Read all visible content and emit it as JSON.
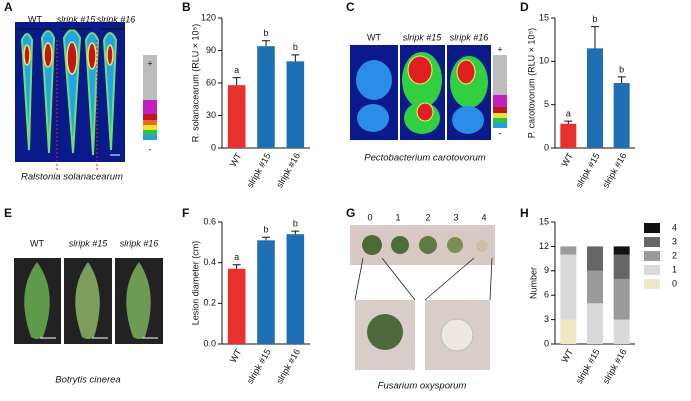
{
  "panel_labels": [
    "A",
    "B",
    "C",
    "D",
    "E",
    "F",
    "G",
    "H"
  ],
  "images": {
    "A": {
      "labels": [
        "WT",
        "slripk #15",
        "slripk #16"
      ],
      "caption": "Ralstonia solanacearum",
      "scale_plus": "+",
      "scale_minus": "-"
    },
    "C": {
      "labels": [
        "WT",
        "slripk #15",
        "slripk #16"
      ],
      "caption": "Pectobacterium carotovorum",
      "scale_plus": "+",
      "scale_minus": "-"
    },
    "E": {
      "labels": [
        "WT",
        "slripk #15",
        "slripk #16"
      ],
      "caption": "Botrytis cinerea"
    },
    "G": {
      "scores": [
        "0",
        "1",
        "2",
        "3",
        "4"
      ],
      "caption": "Fusarium oxysporum"
    }
  },
  "chart_data": [
    {
      "type": "bar",
      "ylabel": "R. solanacearum (RLU × 10⁵)",
      "categories": [
        "WT",
        "slripk #15",
        "slripk #16"
      ],
      "values": [
        58,
        94,
        80
      ],
      "errors": [
        7,
        5,
        6
      ],
      "annotations": [
        "a",
        "b",
        "b"
      ],
      "colors": [
        "#e8312f",
        "#1f6fb5",
        "#1f6fb5"
      ],
      "ylim": [
        0,
        120
      ],
      "yticks": [
        0,
        30,
        60,
        90,
        120
      ]
    },
    {
      "type": "bar",
      "ylabel": "P. carotovorum (RLU × 10⁵)",
      "categories": [
        "WT",
        "slripk #15",
        "slripk #16"
      ],
      "values": [
        2.8,
        11.5,
        7.5
      ],
      "errors": [
        0.3,
        2.5,
        0.7
      ],
      "annotations": [
        "a",
        "b",
        "b"
      ],
      "colors": [
        "#e8312f",
        "#1f6fb5",
        "#1f6fb5"
      ],
      "ylim": [
        0,
        15
      ],
      "yticks": [
        0,
        5,
        10,
        15
      ]
    },
    {
      "type": "bar",
      "ylabel": "Lesion diameter (cm)",
      "categories": [
        "WT",
        "slripk #15",
        "slripk #16"
      ],
      "values": [
        0.37,
        0.51,
        0.54
      ],
      "errors": [
        0.02,
        0.015,
        0.015
      ],
      "annotations": [
        "a",
        "b",
        "b"
      ],
      "colors": [
        "#e8312f",
        "#1f6fb5",
        "#1f6fb5"
      ],
      "ylim": [
        0,
        0.6
      ],
      "yticks": [
        {
          "value": 0,
          "label": "0.0"
        },
        0.2,
        0.4,
        0.6
      ]
    },
    {
      "type": "stacked_bar",
      "ylabel": "Number",
      "categories": [
        "WT",
        "slripk #15",
        "slripk #16"
      ],
      "series": [
        {
          "name": "0",
          "color": "#efe6c4",
          "values": [
            3,
            0,
            0
          ]
        },
        {
          "name": "1",
          "color": "#d9d9d9",
          "values": [
            8,
            5,
            3
          ]
        },
        {
          "name": "2",
          "color": "#9a9a9a",
          "values": [
            1,
            4,
            5
          ]
        },
        {
          "name": "3",
          "color": "#666666",
          "values": [
            0,
            3,
            3
          ]
        },
        {
          "name": "4",
          "color": "#111111",
          "values": [
            0,
            0,
            1
          ]
        }
      ],
      "ylim": [
        0,
        15
      ],
      "yticks": [
        0,
        3,
        6,
        9,
        12,
        15
      ]
    }
  ]
}
